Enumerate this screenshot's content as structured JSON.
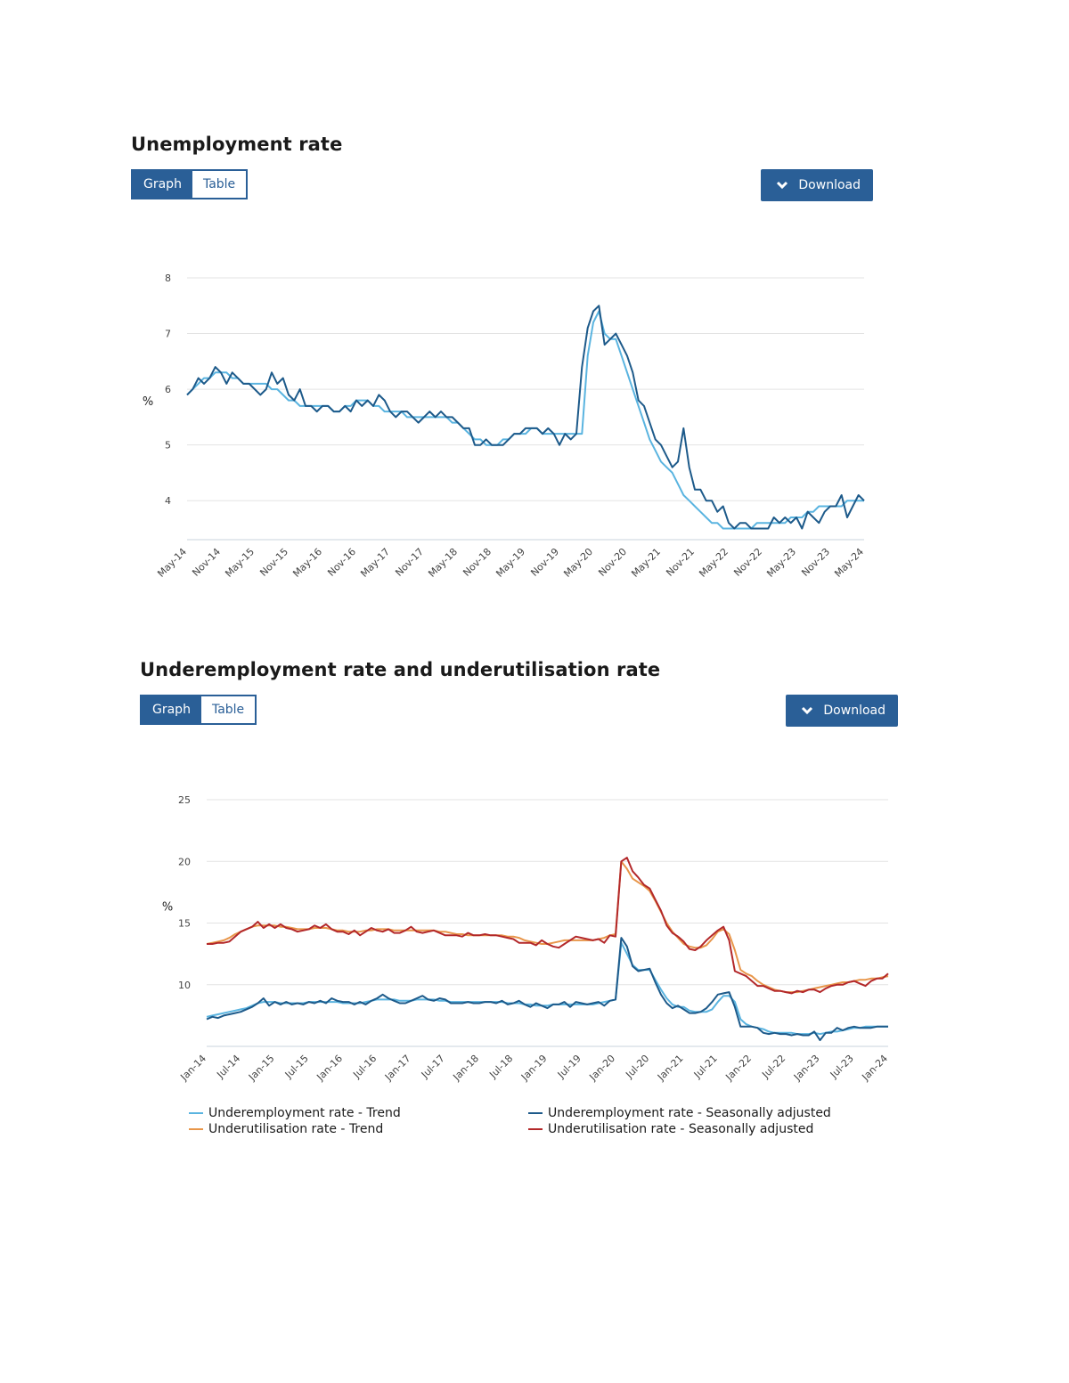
{
  "charts": [
    {
      "title": "Unemployment rate",
      "graph_label": "Graph",
      "table_label": "Table",
      "download_label": "Download",
      "unit_label": "%"
    },
    {
      "title": "Underemployment rate and underutilisation rate",
      "graph_label": "Graph",
      "table_label": "Table",
      "download_label": "Download",
      "unit_label": "%"
    }
  ],
  "colors": {
    "button": "#2a5f97",
    "trend_blue": "#5ab4e0",
    "sa_blue": "#1d5a8a",
    "trend_orange": "#e8964a",
    "sa_red": "#b3282a",
    "grid": "#e3e3e3"
  },
  "chart_data": [
    {
      "type": "line",
      "title": "Unemployment rate",
      "ylabel": "%",
      "ylim": [
        3.3,
        8
      ],
      "yticks": [
        4,
        5,
        6,
        7,
        8
      ],
      "grid": true,
      "x_start": "May-14",
      "x_step_months": 1,
      "x_tick_labels": [
        "May-14",
        "Nov-14",
        "May-15",
        "Nov-15",
        "May-16",
        "Nov-16",
        "May-17",
        "Nov-17",
        "May-18",
        "Nov-18",
        "May-19",
        "Nov-19",
        "May-20",
        "Nov-20",
        "May-21",
        "Nov-21",
        "May-22",
        "Nov-22",
        "May-23",
        "Nov-23",
        "May-24"
      ],
      "series": [
        {
          "values": [
            5.9,
            6.0,
            6.1,
            6.2,
            6.2,
            6.3,
            6.3,
            6.3,
            6.2,
            6.2,
            6.1,
            6.1,
            6.1,
            6.1,
            6.1,
            6.0,
            6.0,
            5.9,
            5.8,
            5.8,
            5.7,
            5.7,
            5.7,
            5.7,
            5.7,
            5.7,
            5.6,
            5.6,
            5.7,
            5.7,
            5.8,
            5.8,
            5.8,
            5.7,
            5.7,
            5.6,
            5.6,
            5.6,
            5.6,
            5.5,
            5.5,
            5.5,
            5.5,
            5.5,
            5.5,
            5.5,
            5.5,
            5.4,
            5.4,
            5.3,
            5.2,
            5.1,
            5.1,
            5.0,
            5.0,
            5.0,
            5.1,
            5.1,
            5.2,
            5.2,
            5.2,
            5.3,
            5.3,
            5.2,
            5.2,
            5.2,
            5.2,
            5.2,
            5.2,
            5.2,
            5.2,
            6.6,
            7.2,
            7.4,
            7.0,
            6.9,
            6.9,
            6.6,
            6.3,
            6.0,
            5.7,
            5.4,
            5.1,
            4.9,
            4.7,
            4.6,
            4.5,
            4.3,
            4.1,
            4.0,
            3.9,
            3.8,
            3.7,
            3.6,
            3.6,
            3.5,
            3.5,
            3.5,
            3.5,
            3.5,
            3.5,
            3.6,
            3.6,
            3.6,
            3.6,
            3.6,
            3.6,
            3.7,
            3.7,
            3.7,
            3.8,
            3.8,
            3.9,
            3.9,
            3.9,
            3.9,
            3.9,
            4.0,
            4.0,
            4.0,
            4.0
          ]
        },
        {
          "values": [
            5.9,
            6.0,
            6.2,
            6.1,
            6.2,
            6.4,
            6.3,
            6.1,
            6.3,
            6.2,
            6.1,
            6.1,
            6.0,
            5.9,
            6.0,
            6.3,
            6.1,
            6.2,
            5.9,
            5.8,
            6.0,
            5.7,
            5.7,
            5.6,
            5.7,
            5.7,
            5.6,
            5.6,
            5.7,
            5.6,
            5.8,
            5.7,
            5.8,
            5.7,
            5.9,
            5.8,
            5.6,
            5.5,
            5.6,
            5.6,
            5.5,
            5.4,
            5.5,
            5.6,
            5.5,
            5.6,
            5.5,
            5.5,
            5.4,
            5.3,
            5.3,
            5.0,
            5.0,
            5.1,
            5.0,
            5.0,
            5.0,
            5.1,
            5.2,
            5.2,
            5.3,
            5.3,
            5.3,
            5.2,
            5.3,
            5.2,
            5.0,
            5.2,
            5.1,
            5.2,
            6.4,
            7.1,
            7.4,
            7.5,
            6.8,
            6.9,
            7.0,
            6.8,
            6.6,
            6.3,
            5.8,
            5.7,
            5.4,
            5.1,
            5.0,
            4.8,
            4.6,
            4.7,
            5.3,
            4.6,
            4.2,
            4.2,
            4.0,
            4.0,
            3.8,
            3.9,
            3.6,
            3.5,
            3.6,
            3.6,
            3.5,
            3.5,
            3.5,
            3.5,
            3.7,
            3.6,
            3.7,
            3.6,
            3.7,
            3.5,
            3.8,
            3.7,
            3.6,
            3.8,
            3.9,
            3.9,
            4.1,
            3.7,
            3.9,
            4.1,
            4.0
          ]
        }
      ]
    },
    {
      "type": "line",
      "title": "Underemployment rate and underutilisation rate",
      "ylabel": "%",
      "ylim": [
        5,
        25
      ],
      "yticks": [
        10,
        15,
        20,
        25
      ],
      "grid": true,
      "x_start": "Jan-14",
      "x_step_months": 1,
      "x_tick_labels": [
        "Jan-14",
        "Jul-14",
        "Jan-15",
        "Jul-15",
        "Jan-16",
        "Jul-16",
        "Jan-17",
        "Jul-17",
        "Jan-18",
        "Jul-18",
        "Jan-19",
        "Jul-19",
        "Jan-20",
        "Jul-20",
        "Jan-21",
        "Jul-21",
        "Jan-22",
        "Jul-22",
        "Jan-23",
        "Jul-23",
        "Jan-24"
      ],
      "series": [
        {
          "name": "Underemployment rate - Trend",
          "values": [
            7.4,
            7.5,
            7.6,
            7.7,
            7.8,
            7.9,
            8.0,
            8.1,
            8.3,
            8.5,
            8.6,
            8.6,
            8.6,
            8.5,
            8.5,
            8.5,
            8.5,
            8.5,
            8.6,
            8.6,
            8.6,
            8.6,
            8.6,
            8.6,
            8.5,
            8.5,
            8.5,
            8.5,
            8.6,
            8.7,
            8.8,
            8.8,
            8.8,
            8.8,
            8.7,
            8.7,
            8.7,
            8.8,
            8.8,
            8.8,
            8.8,
            8.7,
            8.7,
            8.6,
            8.6,
            8.6,
            8.6,
            8.6,
            8.6,
            8.6,
            8.6,
            8.6,
            8.6,
            8.5,
            8.5,
            8.5,
            8.4,
            8.4,
            8.3,
            8.3,
            8.3,
            8.4,
            8.4,
            8.4,
            8.4,
            8.4,
            8.4,
            8.4,
            8.4,
            8.5,
            8.6,
            8.7,
            8.8,
            13.4,
            12.5,
            11.6,
            11.2,
            11.2,
            11.2,
            10.4,
            9.6,
            8.9,
            8.4,
            8.2,
            8.2,
            7.9,
            7.8,
            7.8,
            7.8,
            8.0,
            8.6,
            9.1,
            9.1,
            8.6,
            7.2,
            6.8,
            6.6,
            6.5,
            6.4,
            6.2,
            6.1,
            6.1,
            6.1,
            6.1,
            6.0,
            6.0,
            6.0,
            6.1,
            6.0,
            6.1,
            6.2,
            6.2,
            6.3,
            6.4,
            6.5,
            6.5,
            6.6,
            6.6,
            6.6,
            6.6,
            6.6
          ]
        },
        {
          "name": "Underemployment rate - Seasonally adjusted",
          "values": [
            7.2,
            7.4,
            7.3,
            7.5,
            7.6,
            7.7,
            7.8,
            8.0,
            8.2,
            8.5,
            8.9,
            8.3,
            8.6,
            8.4,
            8.6,
            8.4,
            8.5,
            8.4,
            8.6,
            8.5,
            8.7,
            8.5,
            8.9,
            8.7,
            8.6,
            8.6,
            8.4,
            8.6,
            8.4,
            8.7,
            8.9,
            9.2,
            8.9,
            8.7,
            8.5,
            8.5,
            8.7,
            8.9,
            9.1,
            8.8,
            8.7,
            8.9,
            8.8,
            8.5,
            8.5,
            8.5,
            8.6,
            8.5,
            8.5,
            8.6,
            8.6,
            8.5,
            8.7,
            8.4,
            8.5,
            8.7,
            8.4,
            8.2,
            8.5,
            8.3,
            8.1,
            8.4,
            8.4,
            8.6,
            8.2,
            8.6,
            8.5,
            8.4,
            8.5,
            8.6,
            8.3,
            8.7,
            8.8,
            13.8,
            13.1,
            11.5,
            11.1,
            11.2,
            11.3,
            10.2,
            9.2,
            8.5,
            8.1,
            8.3,
            8.0,
            7.7,
            7.7,
            7.8,
            8.1,
            8.6,
            9.2,
            9.3,
            9.4,
            8.2,
            6.6,
            6.6,
            6.6,
            6.5,
            6.1,
            6.0,
            6.1,
            6.0,
            6.0,
            5.9,
            6.0,
            5.9,
            5.9,
            6.2,
            5.5,
            6.1,
            6.1,
            6.5,
            6.3,
            6.5,
            6.6,
            6.5,
            6.5,
            6.5,
            6.6,
            6.6,
            6.6
          ]
        },
        {
          "name": "Underutilisation rate - Trend",
          "values": [
            13.3,
            13.4,
            13.5,
            13.6,
            13.8,
            14.1,
            14.3,
            14.5,
            14.7,
            14.8,
            14.8,
            14.8,
            14.8,
            14.7,
            14.7,
            14.6,
            14.5,
            14.5,
            14.5,
            14.6,
            14.6,
            14.6,
            14.5,
            14.4,
            14.4,
            14.3,
            14.3,
            14.3,
            14.4,
            14.4,
            14.5,
            14.5,
            14.5,
            14.4,
            14.4,
            14.4,
            14.4,
            14.4,
            14.4,
            14.4,
            14.4,
            14.3,
            14.3,
            14.2,
            14.1,
            14.1,
            14.0,
            14.0,
            14.0,
            14.0,
            14.0,
            14.0,
            14.0,
            13.9,
            13.9,
            13.8,
            13.6,
            13.5,
            13.4,
            13.3,
            13.3,
            13.4,
            13.5,
            13.6,
            13.6,
            13.6,
            13.6,
            13.6,
            13.6,
            13.7,
            13.8,
            14.0,
            14.1,
            20.0,
            19.4,
            18.6,
            18.3,
            18.0,
            17.6,
            16.8,
            15.9,
            15.0,
            14.3,
            13.8,
            13.3,
            13.1,
            13.0,
            13.0,
            13.2,
            13.7,
            14.3,
            14.5,
            14.1,
            12.8,
            11.2,
            10.9,
            10.7,
            10.3,
            10.0,
            9.8,
            9.6,
            9.5,
            9.4,
            9.4,
            9.4,
            9.5,
            9.6,
            9.7,
            9.8,
            9.9,
            10.0,
            10.1,
            10.2,
            10.2,
            10.3,
            10.4,
            10.4,
            10.5,
            10.5,
            10.6,
            10.7
          ]
        },
        {
          "name": "Underutilisation rate - Seasonally adjusted",
          "values": [
            13.3,
            13.3,
            13.4,
            13.4,
            13.5,
            13.9,
            14.3,
            14.5,
            14.7,
            15.1,
            14.6,
            14.9,
            14.6,
            14.9,
            14.6,
            14.5,
            14.3,
            14.4,
            14.5,
            14.8,
            14.6,
            14.9,
            14.5,
            14.3,
            14.3,
            14.1,
            14.4,
            14.0,
            14.3,
            14.6,
            14.4,
            14.3,
            14.5,
            14.2,
            14.2,
            14.4,
            14.7,
            14.3,
            14.2,
            14.3,
            14.4,
            14.2,
            14.0,
            14.0,
            14.0,
            13.9,
            14.2,
            14.0,
            14.0,
            14.1,
            14.0,
            14.0,
            13.9,
            13.8,
            13.7,
            13.4,
            13.4,
            13.4,
            13.2,
            13.6,
            13.3,
            13.1,
            13.0,
            13.3,
            13.6,
            13.9,
            13.8,
            13.7,
            13.6,
            13.7,
            13.4,
            14.0,
            13.9,
            20.0,
            20.3,
            19.2,
            18.7,
            18.1,
            17.8,
            16.9,
            16.0,
            14.8,
            14.2,
            13.9,
            13.5,
            12.9,
            12.8,
            13.1,
            13.6,
            14.0,
            14.4,
            14.7,
            13.6,
            11.1,
            10.9,
            10.7,
            10.3,
            9.9,
            9.9,
            9.7,
            9.5,
            9.5,
            9.4,
            9.3,
            9.5,
            9.4,
            9.6,
            9.6,
            9.4,
            9.7,
            9.9,
            10.0,
            10.0,
            10.2,
            10.3,
            10.1,
            9.9,
            10.3,
            10.5,
            10.5,
            10.9
          ]
        }
      ],
      "legend": {
        "placement": "bottom",
        "items": [
          "Underemployment rate - Trend",
          "Underemployment rate - Seasonally adjusted",
          "Underutilisation rate - Trend",
          "Underutilisation rate - Seasonally adjusted"
        ]
      }
    }
  ]
}
